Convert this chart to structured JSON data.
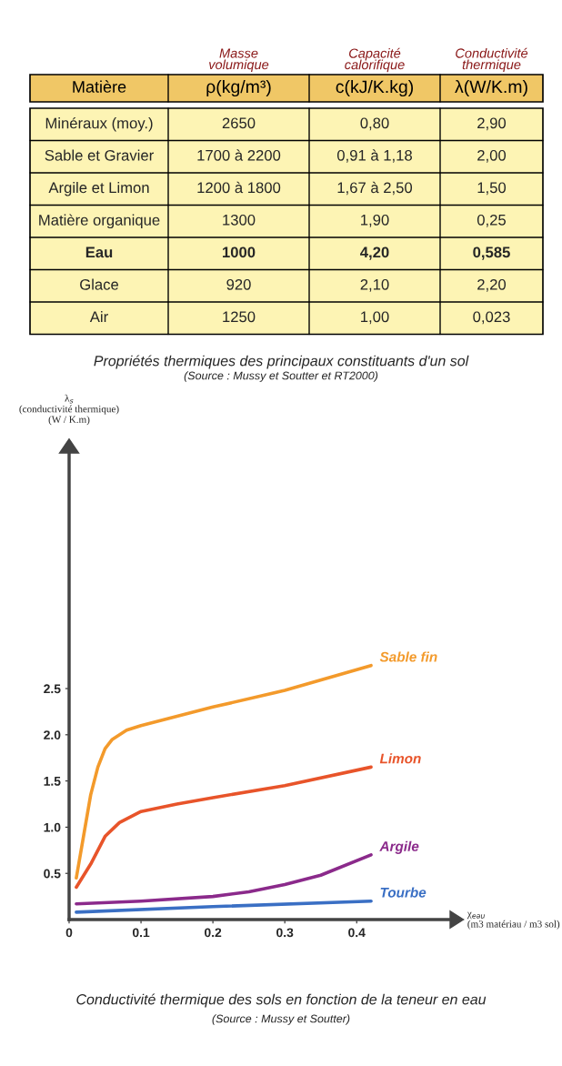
{
  "chart_data": [
    {
      "type": "other",
      "title": "Propriétés thermiques des principaux constituants d'un sol",
      "subtitle": "(Source : Mussy et Soutter et RT2000)",
      "annotations": [
        "Masse\nvolumique",
        "Capacité\ncalorifique",
        "Conductivité\nthermique",
        "Matière",
        "ρ(kg/m³)",
        "c(kJ/K.kg)",
        "λ(W/K.m)",
        "Minéraux (moy.)",
        "2650",
        "0,80",
        "2,90",
        "Sable et Gravier",
        "1700 à 2200",
        "0,91 à 1,18",
        "2,00",
        "Argile et Limon",
        "1200 à 1800",
        "1,67 à 2,50",
        "1,50",
        "Matière organique",
        "1300",
        "1,90",
        "0,25",
        "Eau",
        "1000",
        "4,20",
        "0,585",
        "Glace",
        "920",
        "2,10",
        "2,20",
        "Air",
        "1250",
        "1,00",
        "0,023"
      ]
    },
    {
      "type": "line",
      "title": "Conductivité thermique des sols en fonction de la teneur en eau",
      "subtitle": "(Source : Mussy et Soutter)",
      "xlabel": "χ$_{eau}$\n(m3 matériau / m3 sol)",
      "ylabel": "λ$_{s}$\n(conductivité thermique)\n(W / K.m)",
      "xlim": [
        0,
        0.53
      ],
      "ylim": [
        0,
        5.05
      ],
      "xticks": [
        {
          "value": 0,
          "label": "0"
        },
        0.1,
        0.2,
        0.3,
        0.4
      ],
      "yticks": [
        0.5,
        {
          "value": 1,
          "label": "1.0"
        },
        1.5,
        {
          "value": 2,
          "label": "2.0"
        },
        2.5
      ],
      "grid": false,
      "legend": false,
      "series": [
        {
          "name": "Sable fin",
          "color": "#f39a2b",
          "x": [
            0.01,
            0.02,
            0.03,
            0.04,
            0.05,
            0.06,
            0.08,
            0.1,
            0.15,
            0.2,
            0.3,
            0.42
          ],
          "values": [
            0.45,
            0.9,
            1.35,
            1.65,
            1.85,
            1.95,
            2.05,
            2.1,
            2.2,
            2.3,
            2.48,
            2.75
          ]
        },
        {
          "name": "Limon",
          "color": "#e8542a",
          "x": [
            0.01,
            0.03,
            0.05,
            0.07,
            0.1,
            0.15,
            0.2,
            0.3,
            0.42
          ],
          "values": [
            0.35,
            0.6,
            0.9,
            1.05,
            1.17,
            1.25,
            1.32,
            1.45,
            1.65
          ]
        },
        {
          "name": "Argile",
          "color": "#8b2a8b",
          "x": [
            0.01,
            0.1,
            0.2,
            0.25,
            0.3,
            0.35,
            0.42
          ],
          "values": [
            0.17,
            0.2,
            0.25,
            0.3,
            0.38,
            0.48,
            0.7
          ]
        },
        {
          "name": "Tourbe",
          "color": "#3a6fc4",
          "x": [
            0.01,
            0.2,
            0.42
          ],
          "values": [
            0.08,
            0.14,
            0.2
          ]
        }
      ]
    }
  ]
}
